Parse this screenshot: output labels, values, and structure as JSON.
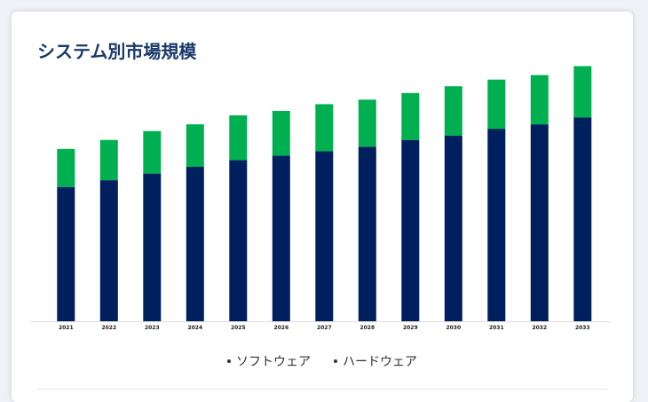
{
  "card": {
    "title": "システム別市場規模"
  },
  "chart_data": {
    "type": "bar",
    "stacked": true,
    "categories": [
      "2021",
      "2022",
      "2023",
      "2024",
      "2025",
      "2026",
      "2027",
      "2028",
      "2029",
      "2030",
      "2031",
      "2032",
      "2033"
    ],
    "series": [
      {
        "name": "ソフトウェア",
        "color": "#001f5e",
        "values": [
          60,
          63,
          66,
          69,
          72,
          74,
          76,
          78,
          81,
          83,
          86,
          88,
          91
        ]
      },
      {
        "name": "ハードウェア",
        "color": "#00b050",
        "values": [
          17,
          18,
          19,
          19,
          20,
          20,
          21,
          21,
          21,
          22,
          22,
          22,
          23
        ]
      }
    ],
    "ylim": [
      0,
      115
    ],
    "grid": false,
    "legend": "bottom-center"
  }
}
